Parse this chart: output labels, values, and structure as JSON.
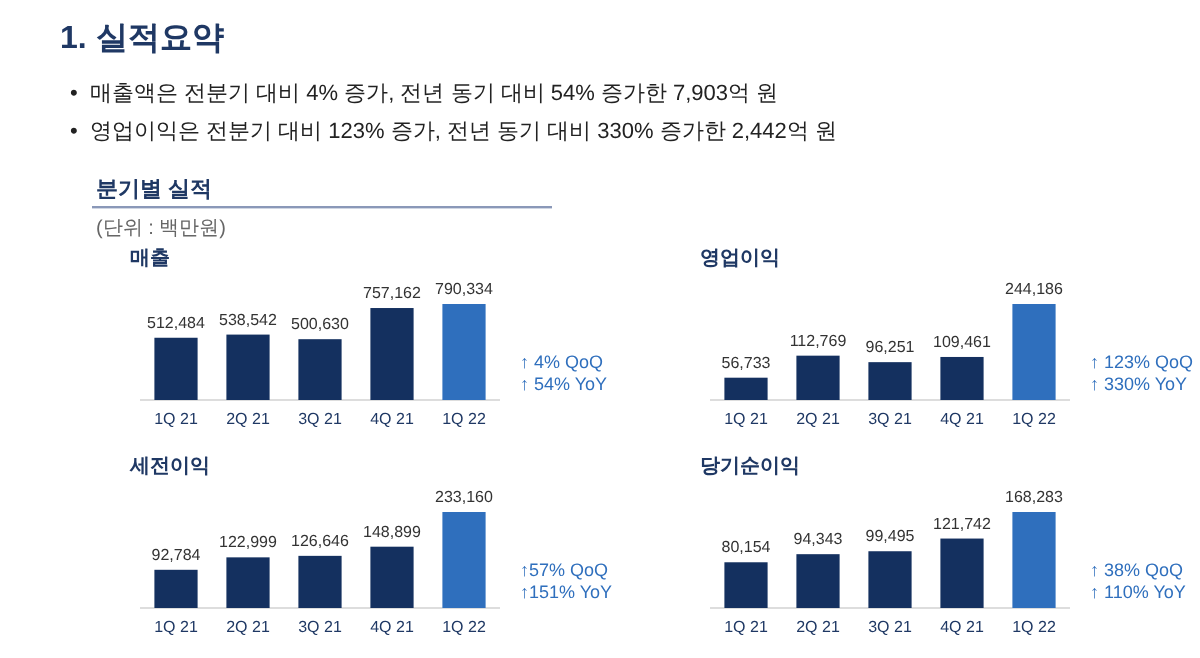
{
  "chart_data": [
    {
      "type": "other",
      "title": "1. 실적요약",
      "subtitle": "분기별 실적",
      "annotations": [
        "•  매출액은 전분기 대비 4% 증가, 전년 동기 대비 54% 증가한 7,903억 원",
        "•  영업이익은 전분기 대비 123% 증가, 전년 동기 대비 330% 증가한 2,442억 원",
        "(단위 : 백만원)"
      ]
    },
    {
      "type": "bar",
      "title": "매출",
      "categories": [
        "1Q 21",
        "2Q 21",
        "3Q 21",
        "4Q 21",
        "1Q 22"
      ],
      "values": [
        512484,
        538542,
        500630,
        757162,
        790334
      ],
      "value_labels": [
        "512,484",
        "538,542",
        "500,630",
        "757,162",
        "790,334"
      ],
      "colors": [
        "#14305f",
        "#14305f",
        "#14305f",
        "#14305f",
        "#2f6fbd"
      ],
      "annotations": [
        "↑ 4% QoQ",
        "↑ 54% YoY"
      ]
    },
    {
      "type": "bar",
      "title": "영업이익",
      "categories": [
        "1Q 21",
        "2Q 21",
        "3Q 21",
        "4Q 21",
        "1Q 22"
      ],
      "values": [
        56733,
        112769,
        96251,
        109461,
        244186
      ],
      "value_labels": [
        "56,733",
        "112,769",
        "96,251",
        "109,461",
        "244,186"
      ],
      "colors": [
        "#14305f",
        "#14305f",
        "#14305f",
        "#14305f",
        "#2f6fbd"
      ],
      "annotations": [
        "↑ 123% QoQ",
        "↑ 330% YoY"
      ]
    },
    {
      "type": "bar",
      "title": "세전이익",
      "categories": [
        "1Q 21",
        "2Q 21",
        "3Q 21",
        "4Q 21",
        "1Q 22"
      ],
      "values": [
        92784,
        122999,
        126646,
        148899,
        233160
      ],
      "value_labels": [
        "92,784",
        "122,999",
        "126,646",
        "148,899",
        "233,160"
      ],
      "colors": [
        "#14305f",
        "#14305f",
        "#14305f",
        "#14305f",
        "#2f6fbd"
      ],
      "annotations": [
        "↑57% QoQ",
        "↑151% YoY"
      ]
    },
    {
      "type": "bar",
      "title": "당기순이익",
      "categories": [
        "1Q 21",
        "2Q 21",
        "3Q 21",
        "4Q 21",
        "1Q 22"
      ],
      "values": [
        80154,
        94343,
        99495,
        121742,
        168283
      ],
      "value_labels": [
        "80,154",
        "94,343",
        "99,495",
        "121,742",
        "168,283"
      ],
      "colors": [
        "#14305f",
        "#14305f",
        "#14305f",
        "#14305f",
        "#2f6fbd"
      ],
      "annotations": [
        "↑ 38% QoQ",
        "↑ 110% YoY"
      ]
    }
  ]
}
